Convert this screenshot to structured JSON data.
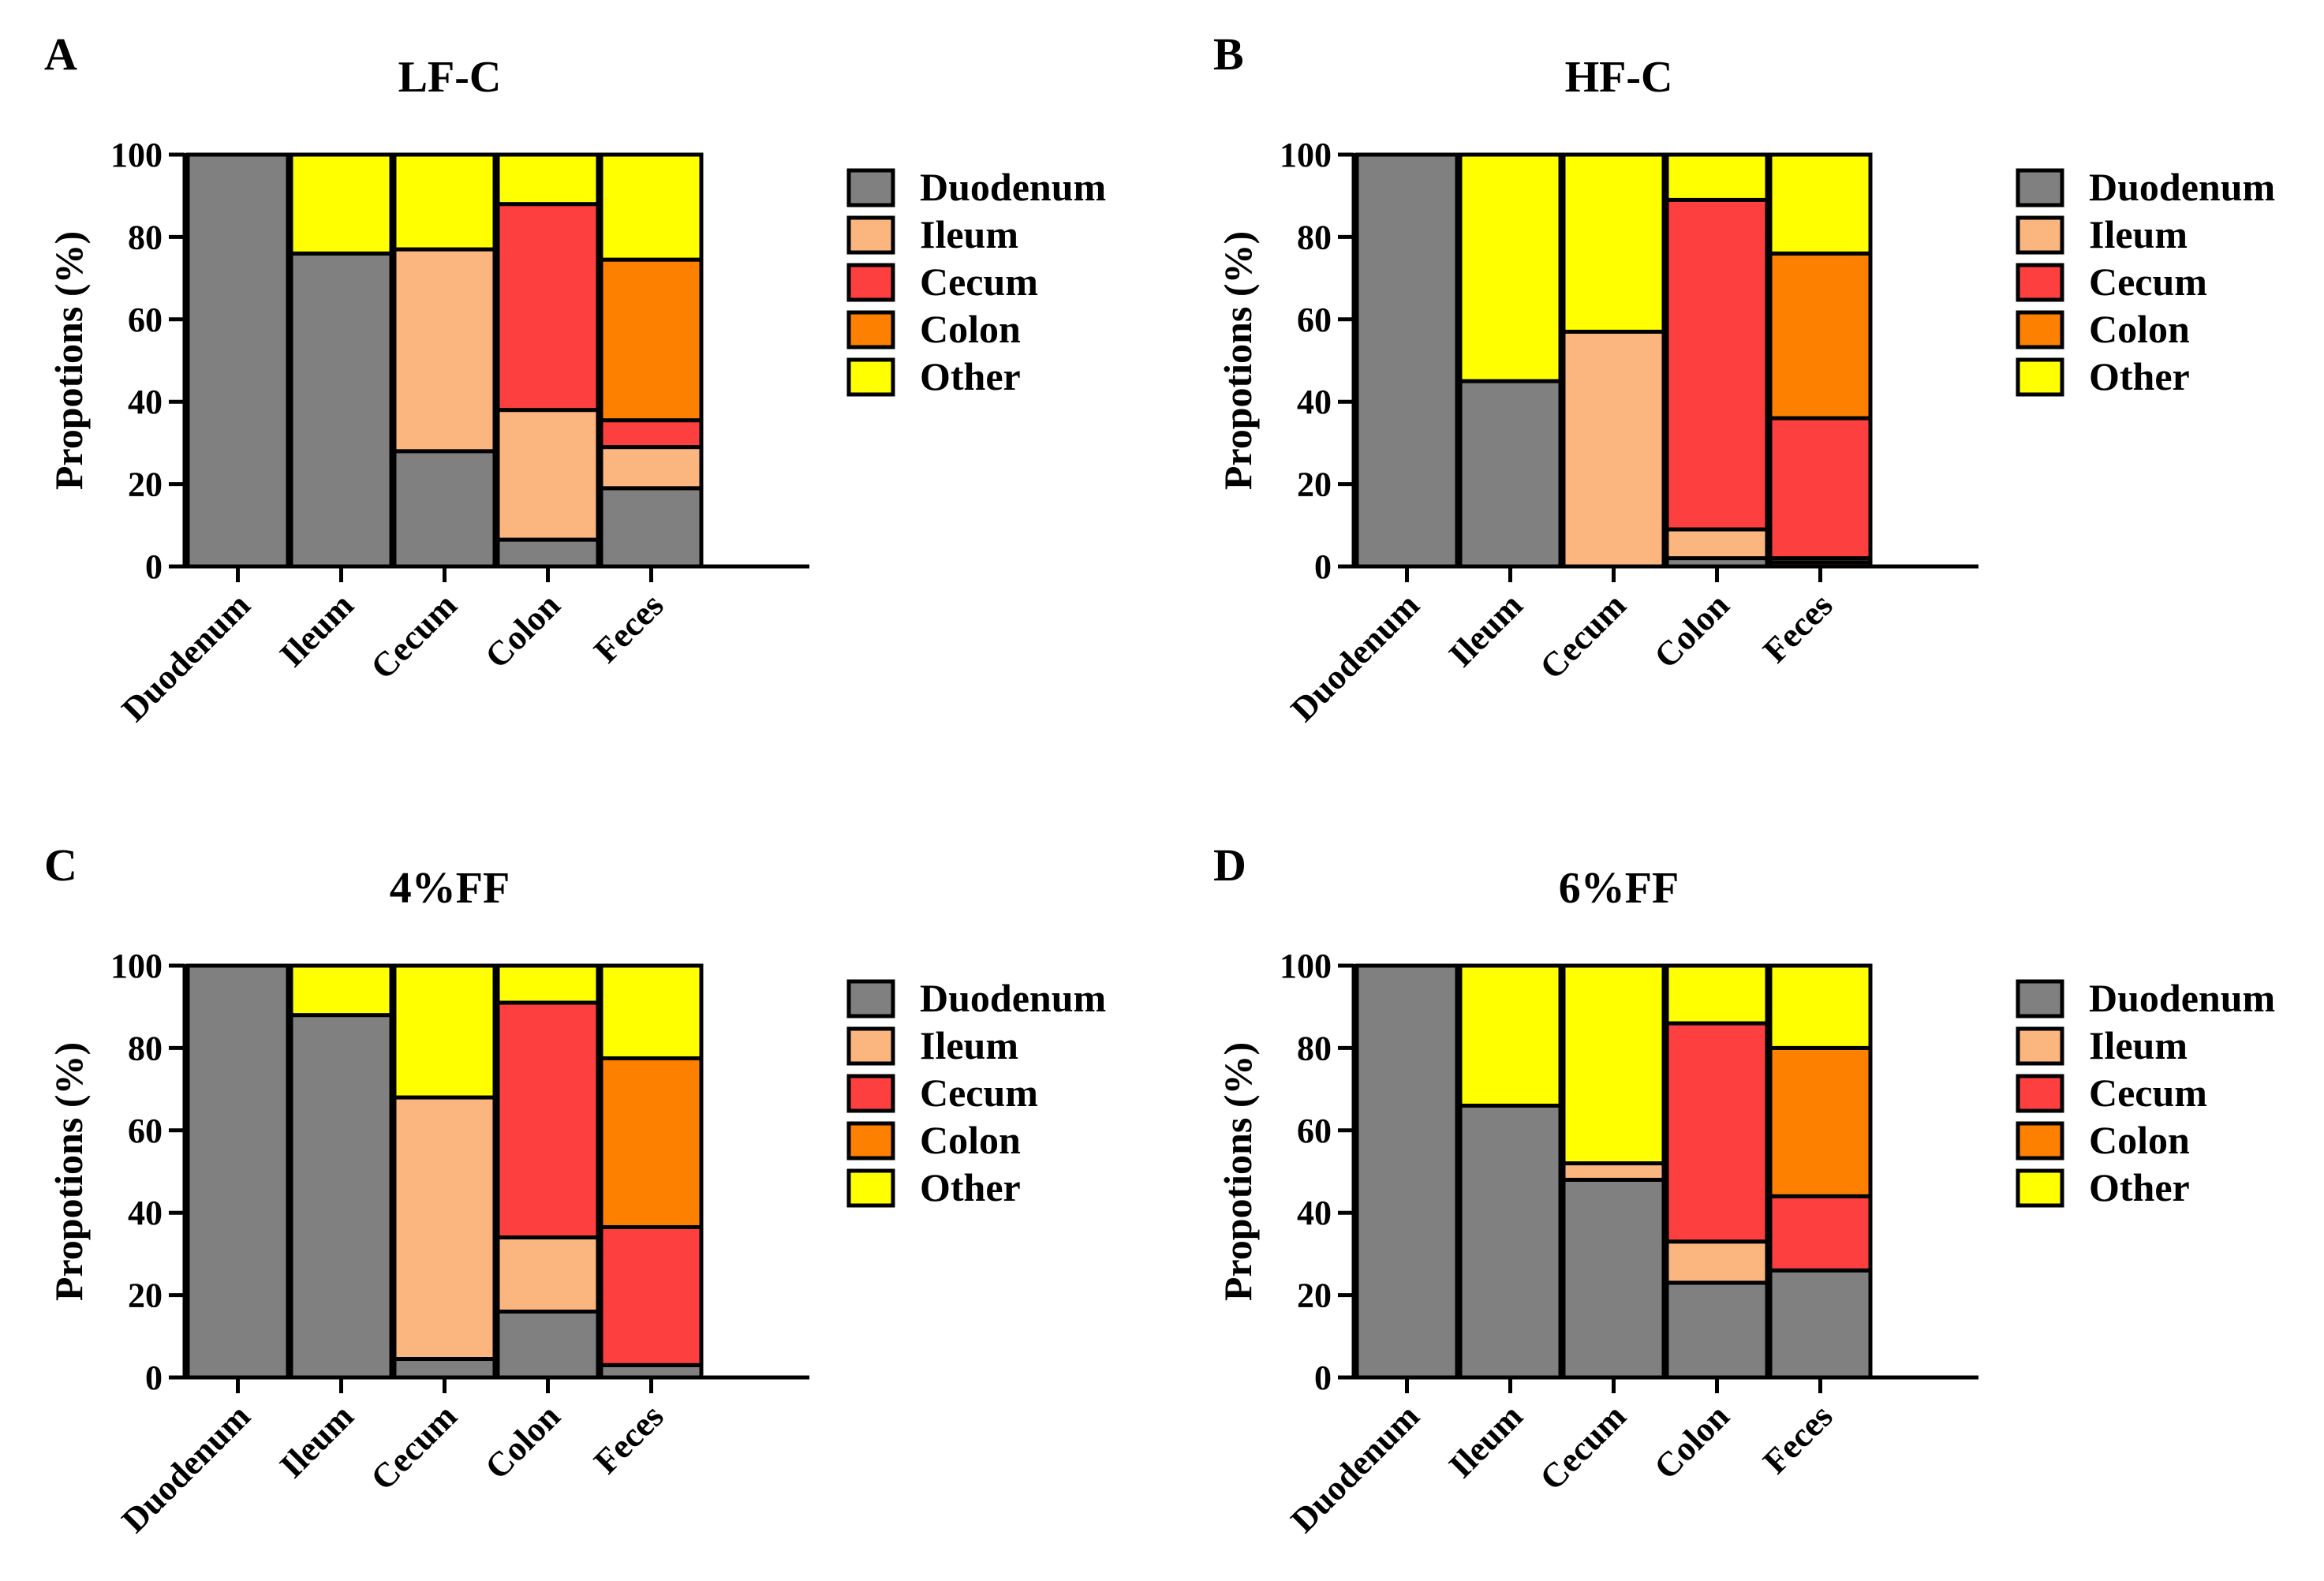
{
  "colors": {
    "Duodenum": "#808080",
    "Ileum": "#fbb57e",
    "Cecum": "#fd3f3f",
    "Colon": "#fe8000",
    "Other": "#ffff00"
  },
  "chart_data": [
    {
      "type": "bar",
      "stacked": true,
      "panel": "A",
      "title": "LF-C",
      "xlabel": "",
      "ylabel": "Propotions (%)",
      "ylim": [
        0,
        100
      ],
      "yticks": [
        "0",
        "20",
        "40",
        "60",
        "80",
        "100"
      ],
      "categories": [
        "Duodenum",
        "Ileum",
        "Cecum",
        "Colon",
        "Feces"
      ],
      "series": [
        {
          "name": "Duodenum",
          "values": [
            100,
            76,
            28,
            6.5,
            19
          ]
        },
        {
          "name": "Ileum",
          "values": [
            0,
            0,
            49,
            31.5,
            10
          ]
        },
        {
          "name": "Cecum",
          "values": [
            0,
            0,
            0,
            50,
            6.5
          ]
        },
        {
          "name": "Colon",
          "values": [
            0,
            0,
            0,
            0,
            39
          ]
        },
        {
          "name": "Other",
          "values": [
            0,
            24,
            23,
            12,
            25.5
          ]
        }
      ]
    },
    {
      "type": "bar",
      "stacked": true,
      "panel": "B",
      "title": "HF-C",
      "xlabel": "",
      "ylabel": "Propotions (%)",
      "ylim": [
        0,
        100
      ],
      "yticks": [
        "0",
        "20",
        "40",
        "60",
        "80",
        "100"
      ],
      "categories": [
        "Duodenum",
        "Ileum",
        "Cecum",
        "Colon",
        "Feces"
      ],
      "series": [
        {
          "name": "Duodenum",
          "values": [
            100,
            45,
            0,
            2,
            1
          ]
        },
        {
          "name": "Ileum",
          "values": [
            0,
            0,
            57,
            7,
            1
          ]
        },
        {
          "name": "Cecum",
          "values": [
            0,
            0,
            0,
            80,
            34
          ]
        },
        {
          "name": "Colon",
          "values": [
            0,
            0,
            0,
            0,
            40
          ]
        },
        {
          "name": "Other",
          "values": [
            0,
            55,
            43,
            11,
            24
          ]
        }
      ]
    },
    {
      "type": "bar",
      "stacked": true,
      "panel": "C",
      "title": "4%FF",
      "xlabel": "",
      "ylabel": "Propotions (%)",
      "ylim": [
        0,
        100
      ],
      "yticks": [
        "0",
        "20",
        "40",
        "60",
        "80",
        "100"
      ],
      "categories": [
        "Duodenum",
        "Ileum",
        "Cecum",
        "Colon",
        "Feces"
      ],
      "series": [
        {
          "name": "Duodenum",
          "values": [
            100,
            88,
            4.5,
            16,
            3
          ]
        },
        {
          "name": "Ileum",
          "values": [
            0,
            0,
            63.5,
            18,
            0
          ]
        },
        {
          "name": "Cecum",
          "values": [
            0,
            0,
            0,
            57,
            33.5
          ]
        },
        {
          "name": "Colon",
          "values": [
            0,
            0,
            0,
            0,
            41
          ]
        },
        {
          "name": "Other",
          "values": [
            0,
            12,
            32,
            9,
            22.5
          ]
        }
      ]
    },
    {
      "type": "bar",
      "stacked": true,
      "panel": "D",
      "title": "6%FF",
      "xlabel": "",
      "ylabel": "Propotions (%)",
      "ylim": [
        0,
        100
      ],
      "yticks": [
        "0",
        "20",
        "40",
        "60",
        "80",
        "100"
      ],
      "categories": [
        "Duodenum",
        "Ileum",
        "Cecum",
        "Colon",
        "Feces"
      ],
      "series": [
        {
          "name": "Duodenum",
          "values": [
            100,
            66,
            48,
            23,
            26
          ]
        },
        {
          "name": "Ileum",
          "values": [
            0,
            0,
            4,
            10,
            0
          ]
        },
        {
          "name": "Cecum",
          "values": [
            0,
            0,
            0,
            53,
            18
          ]
        },
        {
          "name": "Colon",
          "values": [
            0,
            0,
            0,
            0,
            36
          ]
        },
        {
          "name": "Other",
          "values": [
            0,
            34,
            48,
            14,
            20
          ]
        }
      ]
    }
  ]
}
